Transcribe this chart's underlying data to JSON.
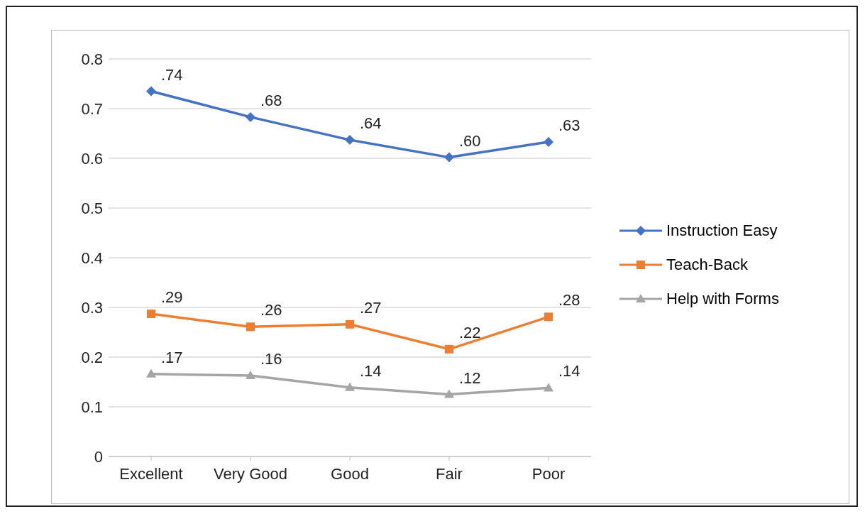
{
  "chart_data": {
    "type": "line",
    "categories": [
      "Excellent",
      "Very Good",
      "Good",
      "Fair",
      "Poor"
    ],
    "series": [
      {
        "name": "Instruction Easy",
        "color": "#4472c4",
        "marker": "diamond",
        "values": [
          0.735,
          0.683,
          0.637,
          0.602,
          0.633
        ],
        "value_labels": [
          ".74",
          ".68",
          ".64",
          ".60",
          ".63"
        ]
      },
      {
        "name": "Teach-Back",
        "color": "#ed7d31",
        "marker": "square",
        "values": [
          0.287,
          0.261,
          0.266,
          0.216,
          0.281
        ],
        "value_labels": [
          ".29",
          ".26",
          ".27",
          ".22",
          ".28"
        ]
      },
      {
        "name": "Help with Forms",
        "color": "#a5a5a5",
        "marker": "triangle",
        "values": [
          0.166,
          0.163,
          0.139,
          0.125,
          0.138
        ],
        "value_labels": [
          ".17",
          ".16",
          ".14",
          ".12",
          ".14"
        ]
      }
    ],
    "ylim": [
      0,
      0.8
    ],
    "yticks": [
      0,
      0.1,
      0.2,
      0.3,
      0.4,
      0.5,
      0.6,
      0.7,
      0.8
    ],
    "grid": "y",
    "legend": "right",
    "line_style": "solid"
  }
}
